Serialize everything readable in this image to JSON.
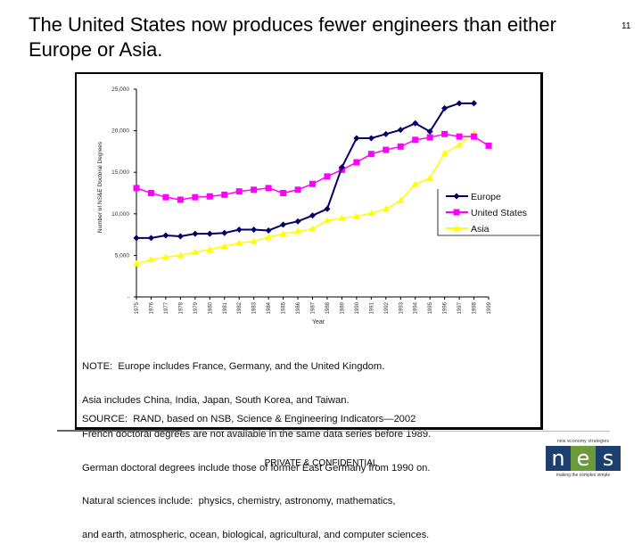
{
  "slide": {
    "title": "The United States now produces fewer engineers than either Europe or Asia.",
    "page_number": "11",
    "footer": "PRIVATE & CONFIDENTIAL",
    "notes": [
      "NOTE:  Europe includes France, Germany, and the United Kingdom.",
      "Asia includes China, India, Japan, South Korea, and Taiwan.",
      "French doctoral degrees are not available in the same data series before 1989.",
      "German doctoral degrees include those of former East Germany from 1990 on.",
      "Natural sciences include:  physics, chemistry, astronomy, mathematics,",
      "and earth, atmospheric, ocean, biological, agricultural, and computer sciences."
    ],
    "source": "SOURCE:  RAND, based on NSB, Science & Engineering Indicators—2002",
    "logo": {
      "top_text": "new economy strategies",
      "letters": [
        "n",
        "e",
        "s"
      ],
      "bottom_text": "making the complex simple",
      "colors": [
        "#1d3f6e",
        "#6a9a3a",
        "#1d3f6e"
      ]
    }
  },
  "chart_data": {
    "type": "line",
    "title": "",
    "xlabel": "Year",
    "ylabel": "Number of NS&E Doctoral Degrees",
    "x": [
      1975,
      1976,
      1977,
      1978,
      1979,
      1980,
      1981,
      1982,
      1983,
      1984,
      1985,
      1986,
      1987,
      1988,
      1989,
      1990,
      1991,
      1992,
      1993,
      1994,
      1995,
      1996,
      1997,
      1998,
      1999
    ],
    "ylim": [
      0,
      25000
    ],
    "yticks": [
      0,
      5000,
      10000,
      15000,
      20000,
      25000
    ],
    "ytick_labels": [
      "-",
      "5,000",
      "10,000",
      "15,000",
      "20,000",
      "25,000"
    ],
    "grid": false,
    "legend_position": "right",
    "series": [
      {
        "name": "Europe",
        "color": "#000066",
        "marker": "diamond",
        "values": [
          7100,
          7100,
          7400,
          7300,
          7600,
          7600,
          7700,
          8100,
          8100,
          8000,
          8700,
          9100,
          9800,
          10600,
          15600,
          19100,
          19100,
          19600,
          20100,
          20900,
          19900,
          22700,
          23300,
          23300,
          null
        ]
      },
      {
        "name": "United States",
        "color": "#ff00ff",
        "marker": "square",
        "values": [
          13100,
          12500,
          12000,
          11700,
          12000,
          12100,
          12300,
          12700,
          12900,
          13100,
          12500,
          12900,
          13600,
          14500,
          15300,
          16200,
          17200,
          17700,
          18100,
          18900,
          19200,
          19600,
          19300,
          19300,
          18200
        ]
      },
      {
        "name": "Asia",
        "color": "#ffff00",
        "marker": "triangle",
        "values": [
          4000,
          4500,
          4800,
          5000,
          5400,
          5700,
          6100,
          6500,
          6700,
          7200,
          7600,
          7900,
          8200,
          9200,
          9500,
          9700,
          10100,
          10600,
          11600,
          13600,
          14300,
          17300,
          18300,
          19700,
          null
        ]
      }
    ]
  }
}
